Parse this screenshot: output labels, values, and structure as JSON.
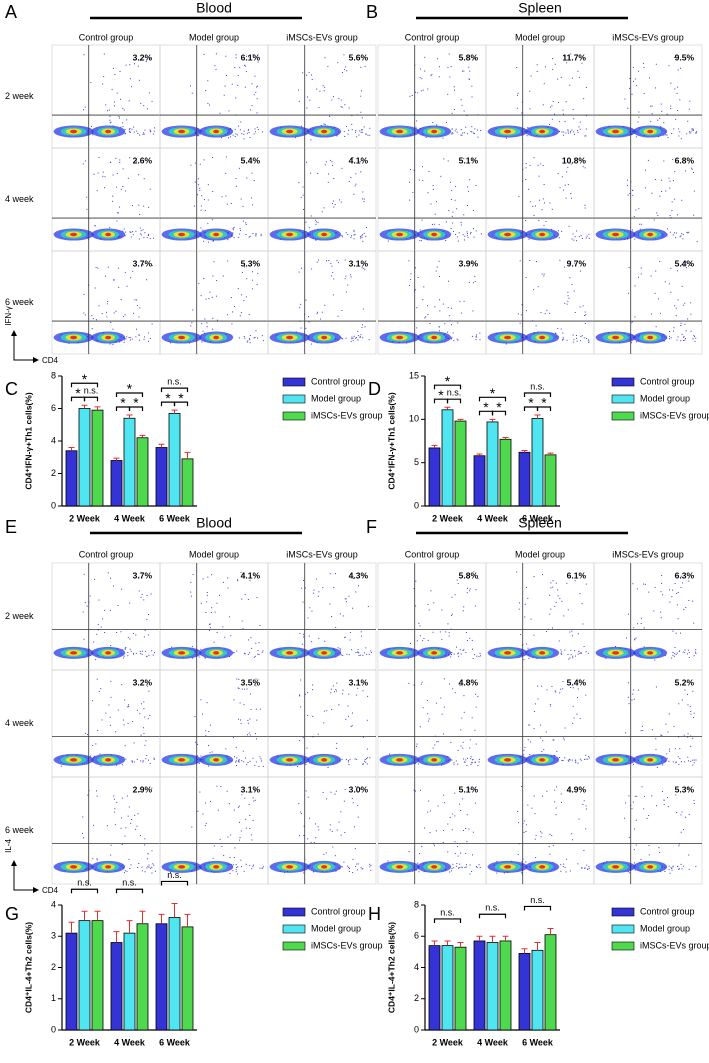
{
  "flow_panels": [
    {
      "letter": "A",
      "tissue": "Blood",
      "groups": [
        "Control group",
        "Model group",
        "iMSCs-EVs group"
      ],
      "rows": [
        "2 week",
        "4 week",
        "6 week"
      ],
      "percents": [
        [
          "3.2%",
          "6.1%",
          "5.6%"
        ],
        [
          "2.6%",
          "5.4%",
          "4.1%"
        ],
        [
          "3.7%",
          "5.3%",
          "3.1%"
        ]
      ],
      "x_label": "CD4",
      "y_label": "IFN-γ"
    },
    {
      "letter": "B",
      "tissue": "Spleen",
      "groups": [
        "Control group",
        "Model group",
        "iMSCs-EVs group"
      ],
      "percents": [
        [
          "5.8%",
          "11.7%",
          "9.5%"
        ],
        [
          "5.1%",
          "10.8%",
          "6.8%"
        ],
        [
          "3.9%",
          "9.7%",
          "5.4%"
        ]
      ]
    },
    {
      "letter": "E",
      "tissue": "Blood",
      "groups": [
        "Control group",
        "Model group",
        "iMSCs-EVs group"
      ],
      "rows": [
        "2 week",
        "4 week",
        "6 week"
      ],
      "percents": [
        [
          "3.7%",
          "4.1%",
          "4.3%"
        ],
        [
          "3.2%",
          "3.5%",
          "3.1%"
        ],
        [
          "2.9%",
          "3.1%",
          "3.0%"
        ]
      ],
      "x_label": "CD4",
      "y_label": "IL-4"
    },
    {
      "letter": "F",
      "tissue": "Spleen",
      "groups": [
        "Control group",
        "Model group",
        "iMSCs-EVs group"
      ],
      "percents": [
        [
          "5.8%",
          "6.1%",
          "6.3%"
        ],
        [
          "4.8%",
          "5.4%",
          "5.2%"
        ],
        [
          "5.1%",
          "4.9%",
          "5.3%"
        ]
      ]
    }
  ],
  "chart_data": [
    {
      "type": "bar",
      "letter": "C",
      "y_label": "CD4⁺IFN-γ+Th1 cells(%)",
      "categories": [
        "2 Week",
        "4 Week",
        "6 Week"
      ],
      "ylim": [
        0,
        8
      ],
      "yticks": [
        0,
        2,
        4,
        6,
        8
      ],
      "series": [
        {
          "name": "Control group",
          "color": "#3333d6",
          "values": [
            3.4,
            2.8,
            3.6
          ],
          "errors": [
            0.2,
            0.15,
            0.2
          ]
        },
        {
          "name": "Model group",
          "color": "#4fe6f2",
          "values": [
            6.0,
            5.4,
            5.7
          ],
          "errors": [
            0.2,
            0.2,
            0.2
          ]
        },
        {
          "name": "iMSCs-EVs group",
          "color": "#4fd94f",
          "values": [
            5.9,
            4.2,
            2.9
          ],
          "errors": [
            0.2,
            0.15,
            0.4
          ]
        }
      ],
      "significance": [
        {
          "category": 0,
          "from": 0,
          "to": 1,
          "label": "*"
        },
        {
          "category": 0,
          "from": 1,
          "to": 2,
          "label": "n.s."
        },
        {
          "category": 0,
          "from": 0,
          "to": 2,
          "label": "*"
        },
        {
          "category": 1,
          "from": 0,
          "to": 1,
          "label": "*"
        },
        {
          "category": 1,
          "from": 1,
          "to": 2,
          "label": "*"
        },
        {
          "category": 1,
          "from": 0,
          "to": 2,
          "label": "*"
        },
        {
          "category": 2,
          "from": 0,
          "to": 1,
          "label": "*"
        },
        {
          "category": 2,
          "from": 1,
          "to": 2,
          "label": "*"
        },
        {
          "category": 2,
          "from": 0,
          "to": 2,
          "label": "n.s."
        }
      ]
    },
    {
      "type": "bar",
      "letter": "D",
      "y_label": "CD4⁺IFN-γ+Th1 cells(%)",
      "categories": [
        "2 Week",
        "4 Week",
        "6 Week"
      ],
      "ylim": [
        0,
        15
      ],
      "yticks": [
        0,
        5,
        10,
        15
      ],
      "series": [
        {
          "name": "Control group",
          "color": "#3333d6",
          "values": [
            6.7,
            5.8,
            6.2
          ],
          "errors": [
            0.3,
            0.2,
            0.2
          ]
        },
        {
          "name": "Model group",
          "color": "#4fe6f2",
          "values": [
            11.1,
            9.7,
            10.1
          ],
          "errors": [
            0.3,
            0.3,
            0.4
          ]
        },
        {
          "name": "iMSCs-EVs group",
          "color": "#4fd94f",
          "values": [
            9.8,
            7.7,
            5.9
          ],
          "errors": [
            0.2,
            0.2,
            0.2
          ]
        }
      ],
      "significance": [
        {
          "category": 0,
          "from": 0,
          "to": 1,
          "label": "*"
        },
        {
          "category": 0,
          "from": 1,
          "to": 2,
          "label": "n.s."
        },
        {
          "category": 0,
          "from": 0,
          "to": 2,
          "label": "*"
        },
        {
          "category": 1,
          "from": 0,
          "to": 1,
          "label": "*"
        },
        {
          "category": 1,
          "from": 1,
          "to": 2,
          "label": "*"
        },
        {
          "category": 1,
          "from": 0,
          "to": 2,
          "label": "*"
        },
        {
          "category": 2,
          "from": 0,
          "to": 1,
          "label": "*"
        },
        {
          "category": 2,
          "from": 1,
          "to": 2,
          "label": "*"
        },
        {
          "category": 2,
          "from": 0,
          "to": 2,
          "label": "n.s."
        }
      ]
    },
    {
      "type": "bar",
      "letter": "G",
      "y_label": "CD4⁺IL-4+Th2 cells(%)",
      "categories": [
        "2 Week",
        "4 Week",
        "6 Week"
      ],
      "ylim": [
        0,
        4
      ],
      "yticks": [
        0,
        1,
        2,
        3,
        4
      ],
      "series": [
        {
          "name": "Control group",
          "color": "#3333d6",
          "values": [
            3.1,
            2.8,
            3.4
          ],
          "errors": [
            0.35,
            0.35,
            0.3
          ]
        },
        {
          "name": "Model group",
          "color": "#4fe6f2",
          "values": [
            3.5,
            3.1,
            3.6
          ],
          "errors": [
            0.3,
            0.4,
            0.45
          ]
        },
        {
          "name": "iMSCs-EVs group",
          "color": "#4fd94f",
          "values": [
            3.5,
            3.4,
            3.3
          ],
          "errors": [
            0.3,
            0.4,
            0.4
          ]
        }
      ],
      "significance": [
        {
          "category": 0,
          "from": 0,
          "to": 2,
          "label": "n.s."
        },
        {
          "category": 1,
          "from": 0,
          "to": 2,
          "label": "n.s."
        },
        {
          "category": 2,
          "from": 0,
          "to": 2,
          "label": "n.s."
        }
      ]
    },
    {
      "type": "bar",
      "letter": "H",
      "y_label": "CD4⁺IL-4+Th2 cells(%)",
      "categories": [
        "2 Week",
        "4 Week",
        "6 Week"
      ],
      "ylim": [
        0,
        8
      ],
      "yticks": [
        0,
        2,
        4,
        6,
        8
      ],
      "series": [
        {
          "name": "Control group",
          "color": "#3333d6",
          "values": [
            5.4,
            5.7,
            4.9
          ],
          "errors": [
            0.3,
            0.3,
            0.3
          ]
        },
        {
          "name": "Model group",
          "color": "#4fe6f2",
          "values": [
            5.4,
            5.6,
            5.1
          ],
          "errors": [
            0.3,
            0.4,
            0.5
          ]
        },
        {
          "name": "iMSCs-EVs group",
          "color": "#4fd94f",
          "values": [
            5.3,
            5.7,
            6.1
          ],
          "errors": [
            0.3,
            0.3,
            0.4
          ]
        }
      ],
      "significance": [
        {
          "category": 0,
          "from": 0,
          "to": 2,
          "label": "n.s."
        },
        {
          "category": 1,
          "from": 0,
          "to": 2,
          "label": "n.s."
        },
        {
          "category": 2,
          "from": 0,
          "to": 2,
          "label": "n.s."
        }
      ]
    }
  ]
}
